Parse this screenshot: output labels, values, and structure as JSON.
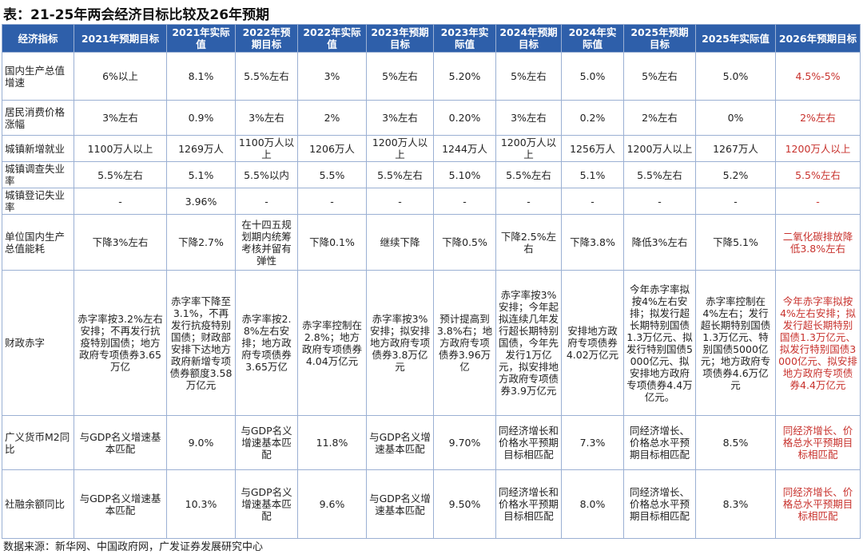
{
  "header": {
    "title": "表：21-25年两会经济目标比较及26年预期"
  },
  "table": {
    "columns": [
      "经济指标",
      "2021年预期目标",
      "2021年实际值",
      "2022年预期目标",
      "2022年实际值",
      "2023年预期目标",
      "2023年实际值",
      "2024年预期目标",
      "2024年实际值",
      "2025年预期目标",
      "2025年实际值",
      "2026年预期目标"
    ],
    "rows": [
      [
        "国内生产总值增速",
        "6%以上",
        "8.1%",
        "5.5%左右",
        "3%",
        "5%左右",
        "5.20%",
        "5%左右",
        "5.0%",
        "5%左右",
        "5.0%",
        "4.5%-5%"
      ],
      [
        "居民消费价格涨幅",
        "3%左右",
        "0.9%",
        "3%左右",
        "2%",
        "3%左右",
        "0.20%",
        "3%左右",
        "0.2%",
        "2%左右",
        "0%",
        "2%左右"
      ],
      [
        "城镇新增就业",
        "1100万人以上",
        "1269万人",
        "1100万人以上",
        "1206万人",
        "1200万人以上",
        "1244万人",
        "1200万人以上",
        "1256万人",
        "1200万人以上",
        "1267万人",
        "1200万人以上"
      ],
      [
        "城镇调查失业率",
        "5.5%左右",
        "5.1%",
        "5.5%以内",
        "5.5%",
        "5.5%左右",
        "5.10%",
        "5.5%左右",
        "5.1%",
        "5.5%左右",
        "5.2%",
        "5.5%左右"
      ],
      [
        "城镇登记失业率",
        "-",
        "3.96%",
        "-",
        "-",
        "-",
        "-",
        "-",
        "-",
        "-",
        "-",
        "-"
      ],
      [
        "单位国内生产总值能耗",
        "下降3%左右",
        "下降2.7%",
        "在十四五规划期内统筹考核并留有弹性",
        "下降0.1%",
        "继续下降",
        "下降0.5%",
        "下降2.5%左右",
        "下降3.8%",
        "降低3%左右",
        "下降5.1%",
        "二氧化碳排放降低3.8%左右"
      ],
      [
        "财政赤字",
        "赤字率按3.2%左右安排；不再发行抗疫特别国债；地方政府专项债券3.65万亿",
        "赤字率下降至3.1%，不再发行抗疫特别国债；财政部安排下达地方政府新增专项债券额度3.58万亿元",
        "赤字率按2.8%左右安排；地方政府专项债券3.65万亿",
        "赤字率控制在2.8%；地方政府专项债券4.04万亿元",
        "赤字率按3%安排；拟安排地方政府专项债券3.8万亿元",
        "预计提高到3.8%右；地方政府专项债券3.96万亿",
        "赤字率按3%安排；今年起拟连续几年发行超长期特别国债，今年先发行1万亿元，拟安排地方政府专项债券3.9万亿元",
        "安排地方政府专项债券4.02万亿元",
        "今年赤字率拟按4%左右安排；拟发行超长期特别国债1.3万亿元、拟发行特别国债5000亿元、拟安排地方政府专项债券4.4万亿元。",
        "赤字率控制在4%左右；发行超长期特别国债1.3万亿元、特别国债5000亿元；地方政府专项债券4.6万亿元",
        "今年赤字率拟按4%左右安排；拟发行超长期特别国债1.3万亿元、拟发行特别国债3000亿元、拟安排地方政府专项债券4.4万亿元"
      ],
      [
        "广义货币M2同比",
        "与GDP名义增速基本匹配",
        "9.0%",
        "与GDP名义增速基本匹配",
        "11.8%",
        "与GDP名义增速基本匹配",
        "9.70%",
        "同经济增长和价格水平预期目标相匹配",
        "7.3%",
        "同经济增长、价格总水平预期目标相匹配",
        "8.5%",
        "同经济增长、价格总水平预期目标相匹配"
      ],
      [
        "社融余额同比",
        "与GDP名义增速基本匹配",
        "10.3%",
        "与GDP名义增速基本匹配",
        "9.6%",
        "与GDP名义增速基本匹配",
        "9.50%",
        "同经济增长和价格水平预期目标相匹配",
        "8.0%",
        "同经济增长、价格总水平预期目标相匹配",
        "8.3%",
        "同经济增长、价格总水平预期目标相匹配"
      ]
    ]
  },
  "footer": {
    "source": "数据来源：新华网、中国政府网，广发证券发展研究中心"
  }
}
